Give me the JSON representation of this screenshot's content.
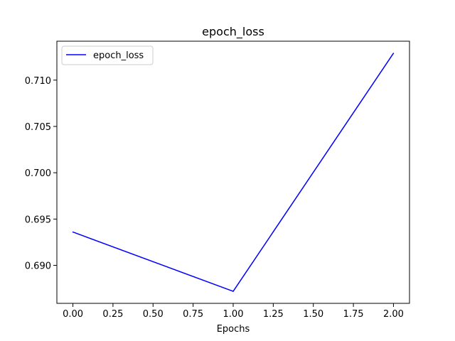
{
  "chart_data": {
    "type": "line",
    "title": "epoch_loss",
    "xlabel": "Epochs",
    "ylabel": "",
    "xlim": [
      -0.1,
      2.1
    ],
    "ylim": [
      0.6859,
      0.7142
    ],
    "x_ticks": [
      0.0,
      0.25,
      0.5,
      0.75,
      1.0,
      1.25,
      1.5,
      1.75,
      2.0
    ],
    "x_tick_labels": [
      "0.00",
      "0.25",
      "0.50",
      "0.75",
      "1.00",
      "1.25",
      "1.50",
      "1.75",
      "2.00"
    ],
    "y_ticks": [
      0.69,
      0.695,
      0.7,
      0.705,
      0.71
    ],
    "y_tick_labels": [
      "0.690",
      "0.695",
      "0.700",
      "0.705",
      "0.710"
    ],
    "grid": false,
    "legend_position": "top-left",
    "series": [
      {
        "name": "epoch_loss",
        "color": "#0000ff",
        "x": [
          0,
          1,
          2
        ],
        "y": [
          0.6936,
          0.6872,
          0.7129
        ]
      }
    ]
  }
}
